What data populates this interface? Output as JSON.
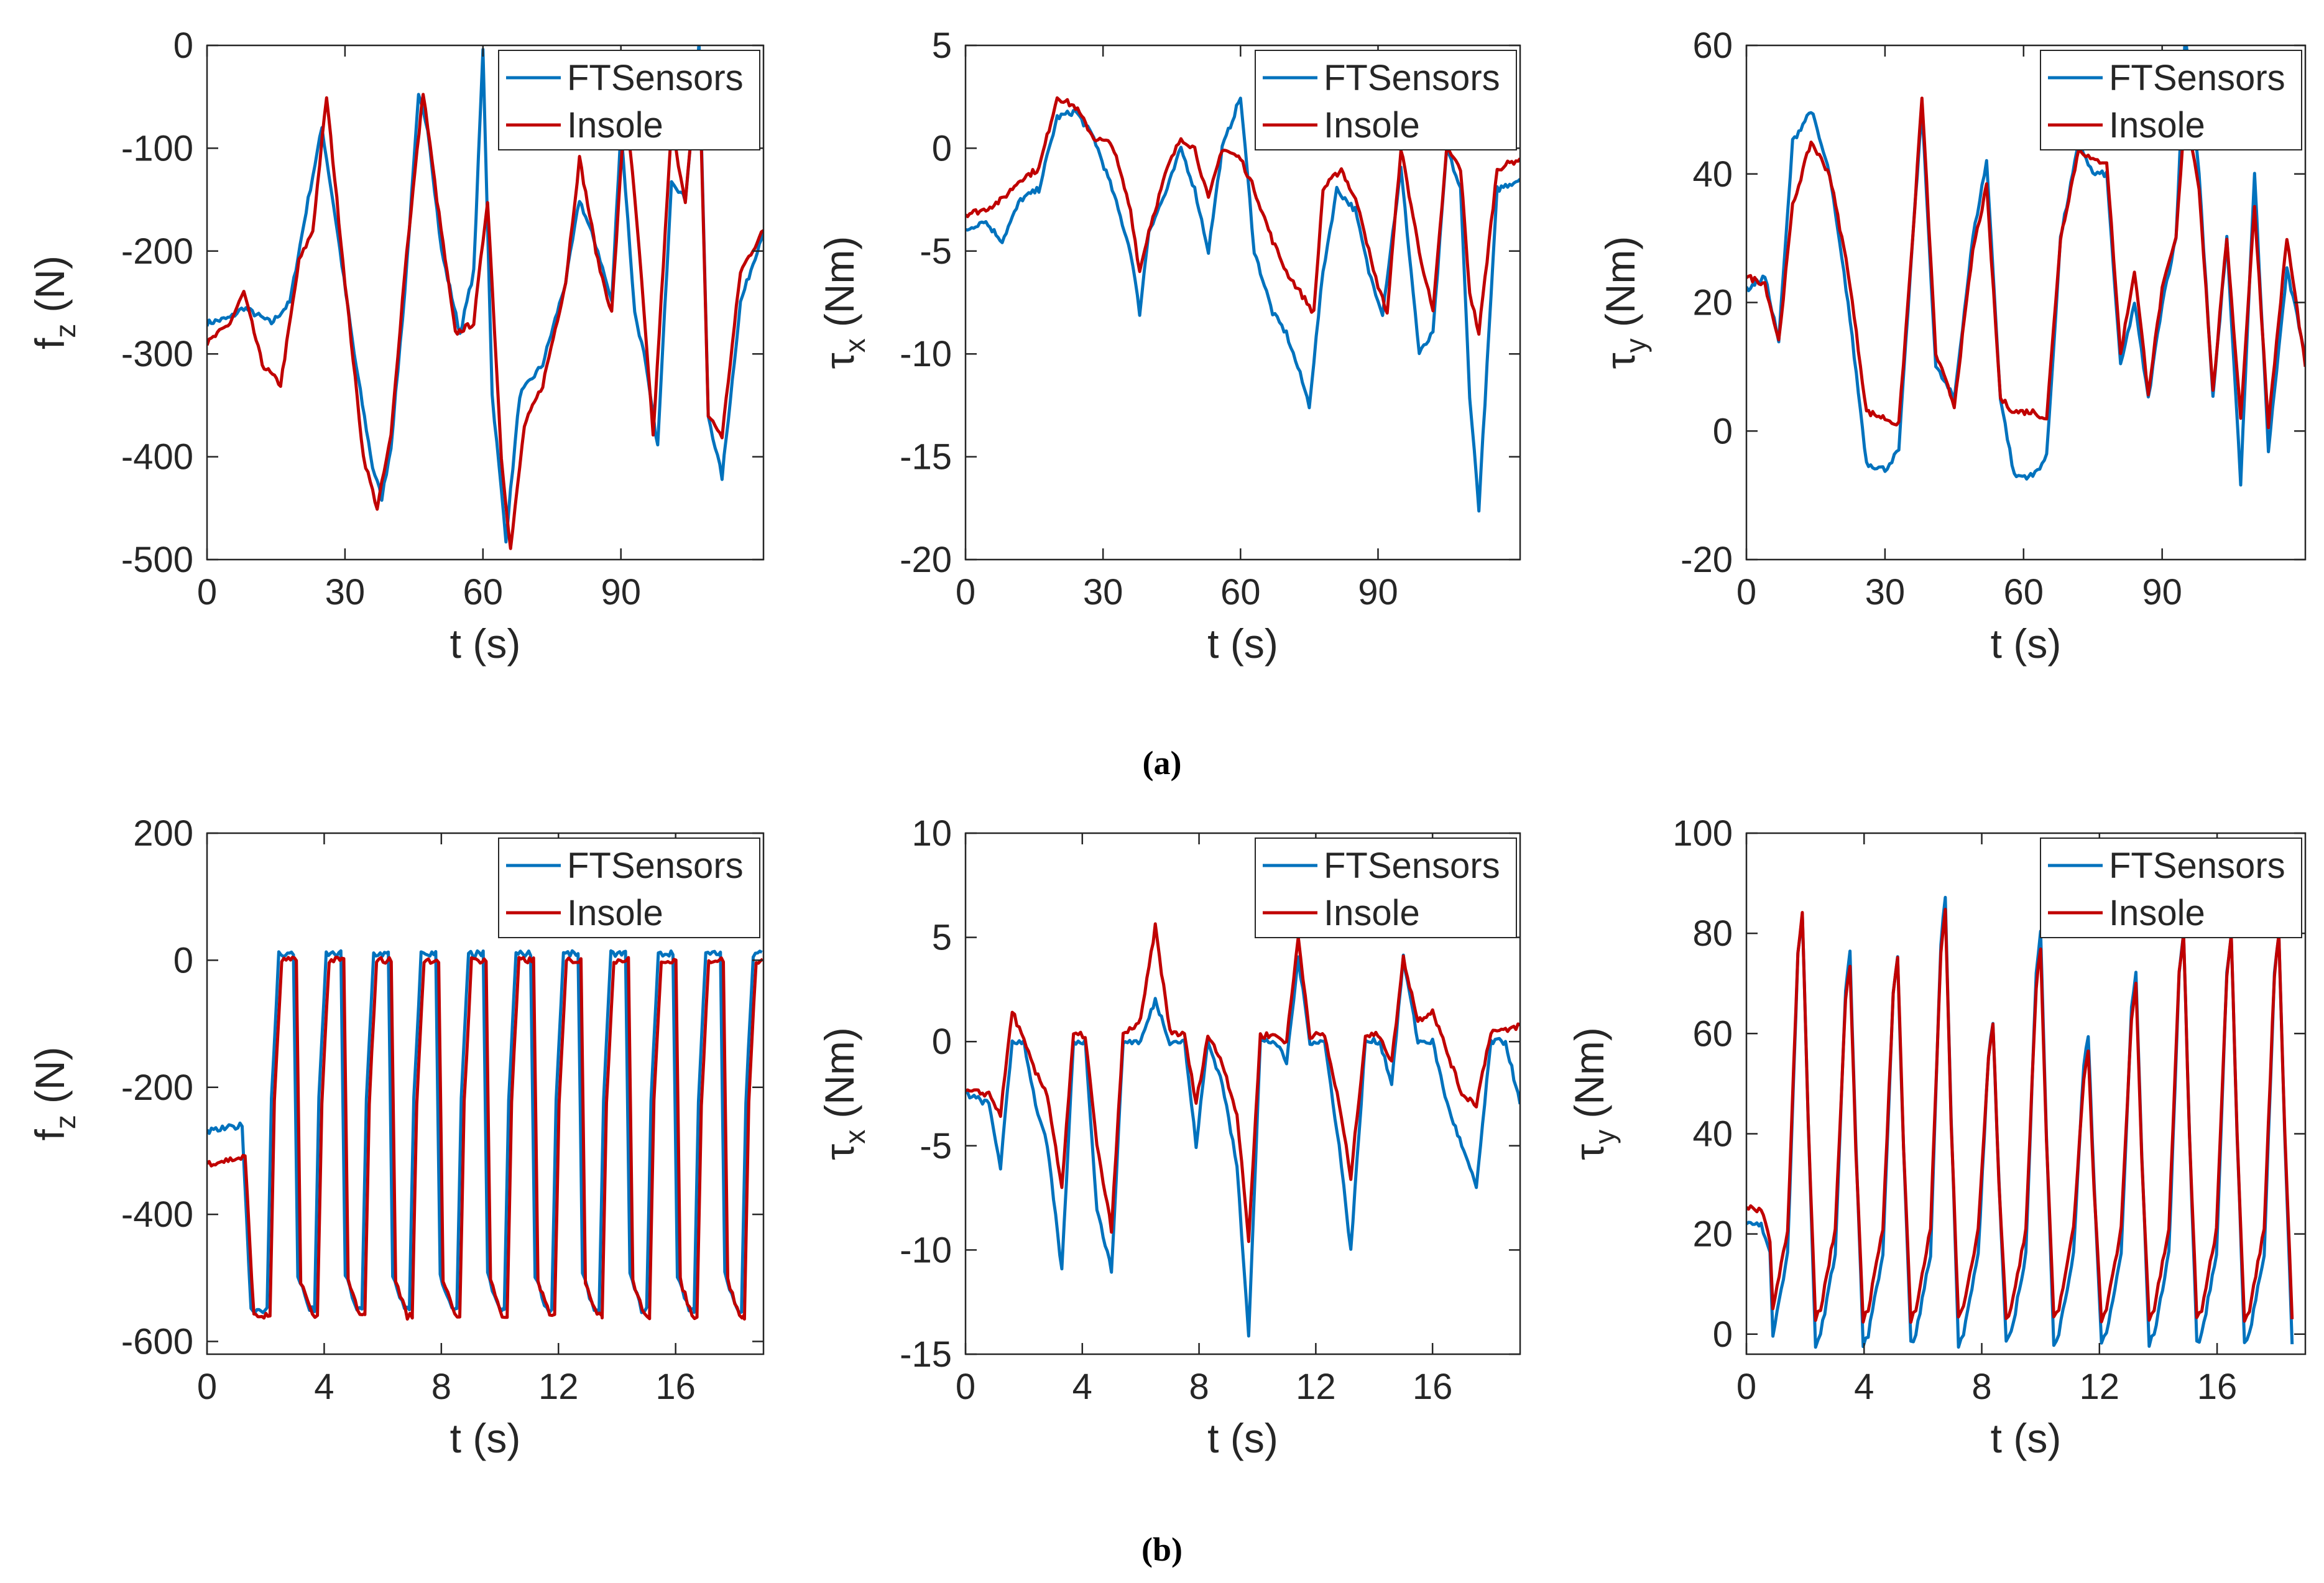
{
  "colors": {
    "ftsensors": "#0072BD",
    "insole": "#C00000",
    "axis": "#262626"
  },
  "captions": [
    "(a)",
    "(b)"
  ],
  "chart_data": [
    {
      "type": "line",
      "row": "a",
      "column": 1,
      "xlabel": "t (s)",
      "ylabel": "f",
      "ylabel_sub": "z",
      "ylabel_unit": "(N)",
      "xlim": [
        0,
        121
      ],
      "ylim": [
        -500,
        0
      ],
      "xticks": [
        0,
        30,
        60,
        90
      ],
      "yticks": [
        -500,
        -400,
        -300,
        -200,
        -100,
        0
      ],
      "xtick_labels": [
        "0",
        "30",
        "60",
        "90"
      ],
      "ytick_labels": [
        "-500",
        "-400",
        "-300",
        "-200",
        "-100",
        "0"
      ],
      "legend": [
        "FTSensors",
        "Insole"
      ],
      "series": [
        {
          "name": "FTSensors",
          "x": [
            0,
            5,
            8,
            14,
            18,
            22,
            25,
            28,
            32,
            36,
            38,
            40,
            43,
            46,
            48,
            51,
            55,
            58,
            60,
            62,
            65,
            68,
            73,
            78,
            81,
            85,
            88,
            90,
            93,
            95,
            98,
            101,
            104,
            107,
            109,
            112,
            116,
            121
          ],
          "y": [
            -270,
            -265,
            -255,
            -270,
            -250,
            -150,
            -80,
            -170,
            -300,
            -410,
            -440,
            -390,
            -240,
            -50,
            -80,
            -200,
            -280,
            -220,
            -5,
            -340,
            -480,
            -340,
            -310,
            -230,
            -150,
            -200,
            -250,
            -80,
            -260,
            -300,
            -390,
            -130,
            -150,
            0,
            -360,
            -420,
            -250,
            -180
          ]
        },
        {
          "name": "Insole",
          "x": [
            0,
            5,
            8,
            12,
            16,
            20,
            23,
            26,
            30,
            34,
            37,
            40,
            43,
            47,
            50,
            54,
            58,
            61,
            64,
            66,
            69,
            73,
            78,
            81,
            85,
            88,
            91,
            94,
            97,
            101,
            104,
            107,
            109,
            112,
            116,
            121
          ],
          "y": [
            -290,
            -270,
            -240,
            -310,
            -330,
            -210,
            -180,
            -50,
            -230,
            -400,
            -450,
            -380,
            -220,
            -45,
            -150,
            -280,
            -270,
            -150,
            -400,
            -490,
            -370,
            -330,
            -230,
            -110,
            -210,
            -260,
            -50,
            -200,
            -380,
            -80,
            -150,
            -10,
            -360,
            -380,
            -220,
            -180
          ]
        }
      ]
    },
    {
      "type": "line",
      "row": "a",
      "column": 2,
      "xlabel": "t (s)",
      "ylabel": "τ",
      "ylabel_sub": "x",
      "ylabel_unit": "(Nm)",
      "xlim": [
        0,
        121
      ],
      "ylim": [
        -20,
        5
      ],
      "xticks": [
        0,
        30,
        60,
        90
      ],
      "yticks": [
        -20,
        -15,
        -10,
        -5,
        0,
        5
      ],
      "xtick_labels": [
        "0",
        "30",
        "60",
        "90"
      ],
      "ytick_labels": [
        "-20",
        "-15",
        "-10",
        "-5",
        "0",
        "5"
      ],
      "legend": [
        "FTSensors",
        "Insole"
      ],
      "series": [
        {
          "name": "FTSensors",
          "x": [
            0,
            4,
            8,
            12,
            16,
            20,
            24,
            28,
            32,
            36,
            38,
            40,
            44,
            47,
            50,
            53,
            56,
            60,
            63,
            67,
            70,
            73,
            75,
            78,
            81,
            85,
            88,
            91,
            95,
            99,
            102,
            105,
            108,
            110,
            112,
            116,
            121
          ],
          "y": [
            -4,
            -3.5,
            -4.5,
            -2.5,
            -2,
            1.5,
            1.8,
            0.5,
            -2,
            -5,
            -8,
            -4,
            -2,
            0,
            -2,
            -5,
            0,
            2.5,
            -5,
            -8,
            -9,
            -11,
            -12.5,
            -6,
            -2,
            -3,
            -6,
            -8,
            -1,
            -10,
            -9,
            0,
            -2,
            -12,
            -17.5,
            -2,
            -1.5
          ]
        },
        {
          "name": "Insole",
          "x": [
            0,
            4,
            8,
            12,
            16,
            20,
            24,
            28,
            32,
            36,
            38,
            40,
            44,
            47,
            50,
            53,
            56,
            60,
            63,
            67,
            70,
            73,
            76,
            78,
            82,
            86,
            89,
            92,
            95,
            99,
            102,
            105,
            108,
            110,
            112,
            116,
            121
          ],
          "y": [
            -3.2,
            -3,
            -2.5,
            -1.5,
            -1,
            2.5,
            2,
            0.5,
            0.2,
            -3,
            -6,
            -4,
            -1,
            0.5,
            0,
            -2.5,
            0,
            -0.5,
            -2,
            -4.5,
            -6,
            -7,
            -8,
            -2,
            -1,
            -3,
            -6,
            -8,
            0,
            -5,
            -8,
            0,
            -1,
            -7,
            -9,
            -1,
            -0.5
          ]
        }
      ]
    },
    {
      "type": "line",
      "row": "a",
      "column": 3,
      "xlabel": "t (s)",
      "ylabel": "τ",
      "ylabel_sub": "y",
      "ylabel_unit": "(Nm)",
      "xlim": [
        0,
        121
      ],
      "ylim": [
        -20,
        60
      ],
      "xticks": [
        0,
        30,
        60,
        90
      ],
      "yticks": [
        -20,
        0,
        20,
        40,
        60
      ],
      "xtick_labels": [
        "0",
        "30",
        "60",
        "90"
      ],
      "ytick_labels": [
        "-20",
        "0",
        "20",
        "40",
        "60"
      ],
      "legend": [
        "FTSensors",
        "Insole"
      ],
      "series": [
        {
          "name": "FTSensors",
          "x": [
            0,
            4,
            7,
            10,
            14,
            18,
            22,
            26,
            30,
            33,
            36,
            38,
            41,
            45,
            49,
            52,
            55,
            58,
            62,
            65,
            68,
            72,
            75,
            78,
            81,
            84,
            87,
            90,
            93,
            95,
            98,
            101,
            104,
            107,
            110,
            113,
            117,
            121
          ],
          "y": [
            22,
            24,
            14,
            45,
            50,
            40,
            20,
            -5,
            -6,
            -3,
            30,
            50,
            10,
            5,
            30,
            42,
            5,
            -7,
            -7,
            -4,
            30,
            45,
            40,
            40,
            10,
            20,
            5,
            20,
            30,
            62,
            40,
            5,
            30,
            -8,
            40,
            -3,
            25,
            12
          ]
        },
        {
          "name": "Insole",
          "x": [
            0,
            4,
            7,
            10,
            14,
            18,
            22,
            26,
            30,
            33,
            36,
            38,
            41,
            45,
            49,
            52,
            55,
            58,
            62,
            65,
            68,
            72,
            75,
            78,
            81,
            84,
            87,
            90,
            93,
            95,
            98,
            101,
            104,
            107,
            110,
            113,
            117,
            121
          ],
          "y": [
            24,
            23,
            14,
            35,
            45,
            40,
            25,
            3,
            2,
            1,
            30,
            52,
            12,
            4,
            28,
            38,
            5,
            3,
            3,
            2,
            30,
            44,
            42,
            42,
            12,
            25,
            6,
            22,
            30,
            50,
            38,
            6,
            30,
            2,
            35,
            1,
            30,
            10
          ]
        }
      ]
    },
    {
      "type": "line",
      "row": "b",
      "column": 1,
      "xlabel": "t (s)",
      "ylabel": "f",
      "ylabel_sub": "z",
      "ylabel_unit": "(N)",
      "xlim": [
        0,
        19
      ],
      "ylim": [
        -620,
        200
      ],
      "xticks": [
        0,
        4,
        8,
        12,
        16
      ],
      "yticks": [
        -600,
        -400,
        -200,
        0,
        200
      ],
      "xtick_labels": [
        "0",
        "4",
        "8",
        "12",
        "16"
      ],
      "ytick_labels": [
        "-600",
        "-400",
        "-200",
        "0",
        "200"
      ],
      "legend": [
        "FTSensors",
        "Insole"
      ],
      "series": [
        {
          "name": "FTSensors",
          "period": 1.62,
          "first_rise": 2.2,
          "low": -550,
          "high": 10,
          "start": -270
        },
        {
          "name": "Insole",
          "period": 1.62,
          "first_rise": 2.3,
          "low": -560,
          "high": 0,
          "start": -320
        }
      ]
    },
    {
      "type": "line",
      "row": "b",
      "column": 2,
      "xlabel": "t (s)",
      "ylabel": "τ",
      "ylabel_sub": "x",
      "ylabel_unit": "(Nm)",
      "xlim": [
        0,
        19
      ],
      "ylim": [
        -15,
        10
      ],
      "xticks": [
        0,
        4,
        8,
        12,
        16
      ],
      "yticks": [
        -15,
        -10,
        -5,
        0,
        5,
        10
      ],
      "xtick_labels": [
        "0",
        "4",
        "8",
        "12",
        "16"
      ],
      "ytick_labels": [
        "-15",
        "-10",
        "-5",
        "0",
        "5",
        "10"
      ],
      "legend": [
        "FTSensors",
        "Insole"
      ],
      "series": [
        {
          "name": "FTSensors",
          "x": [
            0,
            0.8,
            1.2,
            1.6,
            2.0,
            2.4,
            2.8,
            3.3,
            3.7,
            4.1,
            4.5,
            5.0,
            5.4,
            6.0,
            6.5,
            7.0,
            7.5,
            7.9,
            8.3,
            8.8,
            9.3,
            9.7,
            10.1,
            10.6,
            11.0,
            11.4,
            11.8,
            12.3,
            12.8,
            13.2,
            13.7,
            14.2,
            14.6,
            15.0,
            15.5,
            16.0,
            16.5,
            17.0,
            17.5,
            18.0,
            18.5,
            19.0
          ],
          "y": [
            -2.5,
            -3,
            -6,
            0,
            0,
            -3,
            -5,
            -11,
            0,
            0,
            -8,
            -11,
            0,
            0,
            2,
            0,
            0,
            -5,
            0,
            -2,
            -6,
            -14,
            0,
            0,
            -1,
            4,
            0,
            0,
            -5,
            -10,
            0,
            0,
            -2,
            4,
            0,
            0,
            -3,
            -5,
            -7,
            0,
            0,
            -3
          ]
        },
        {
          "name": "Insole",
          "x": [
            0,
            0.8,
            1.2,
            1.6,
            2.0,
            2.4,
            2.8,
            3.3,
            3.7,
            4.1,
            4.5,
            5.0,
            5.4,
            6.0,
            6.5,
            7.0,
            7.5,
            7.9,
            8.3,
            8.8,
            9.3,
            9.7,
            10.1,
            10.6,
            11.0,
            11.4,
            11.8,
            12.3,
            12.8,
            13.2,
            13.7,
            14.2,
            14.6,
            15.0,
            15.5,
            16.0,
            16.5,
            17.0,
            17.5,
            18.0,
            18.5,
            19.0
          ],
          "y": [
            -2.4,
            -2.5,
            -3.5,
            1.5,
            0,
            -1.5,
            -2.5,
            -7,
            0.3,
            0.3,
            -5,
            -9,
            0.3,
            1,
            5.5,
            0.5,
            0.3,
            -3,
            0.3,
            -1,
            -3.5,
            -9.5,
            0.3,
            0.3,
            0,
            5,
            0.3,
            0.3,
            -3,
            -6.5,
            0.3,
            0.3,
            -1,
            4,
            1,
            1.5,
            -0.5,
            -2.5,
            -3,
            0.5,
            0.5,
            0.8
          ]
        }
      ]
    },
    {
      "type": "line",
      "row": "b",
      "column": 3,
      "xlabel": "t (s)",
      "ylabel": "τ",
      "ylabel_sub": "y",
      "ylabel_unit": "(Nm)",
      "xlim": [
        0,
        19
      ],
      "ylim": [
        -4,
        100
      ],
      "xticks": [
        0,
        4,
        8,
        12,
        16
      ],
      "yticks": [
        0,
        20,
        40,
        60,
        80,
        100
      ],
      "xtick_labels": [
        "0",
        "4",
        "8",
        "12",
        "16"
      ],
      "ytick_labels": [
        "0",
        "20",
        "40",
        "60",
        "80",
        "100"
      ],
      "legend": [
        "FTSensors",
        "Insole"
      ],
      "series": [
        {
          "name": "FTSensors",
          "peaks": [
            84,
            76,
            75,
            87,
            62,
            80,
            60,
            72,
            80,
            80,
            80
          ],
          "first_peak": 1.9,
          "period": 1.62,
          "low": -2,
          "start": 22
        },
        {
          "name": "Insole",
          "peaks": [
            84,
            74,
            75,
            85,
            62,
            77,
            57,
            70,
            80,
            80,
            80
          ],
          "first_peak": 1.9,
          "period": 1.62,
          "low": 3,
          "start": 25
        }
      ]
    }
  ]
}
